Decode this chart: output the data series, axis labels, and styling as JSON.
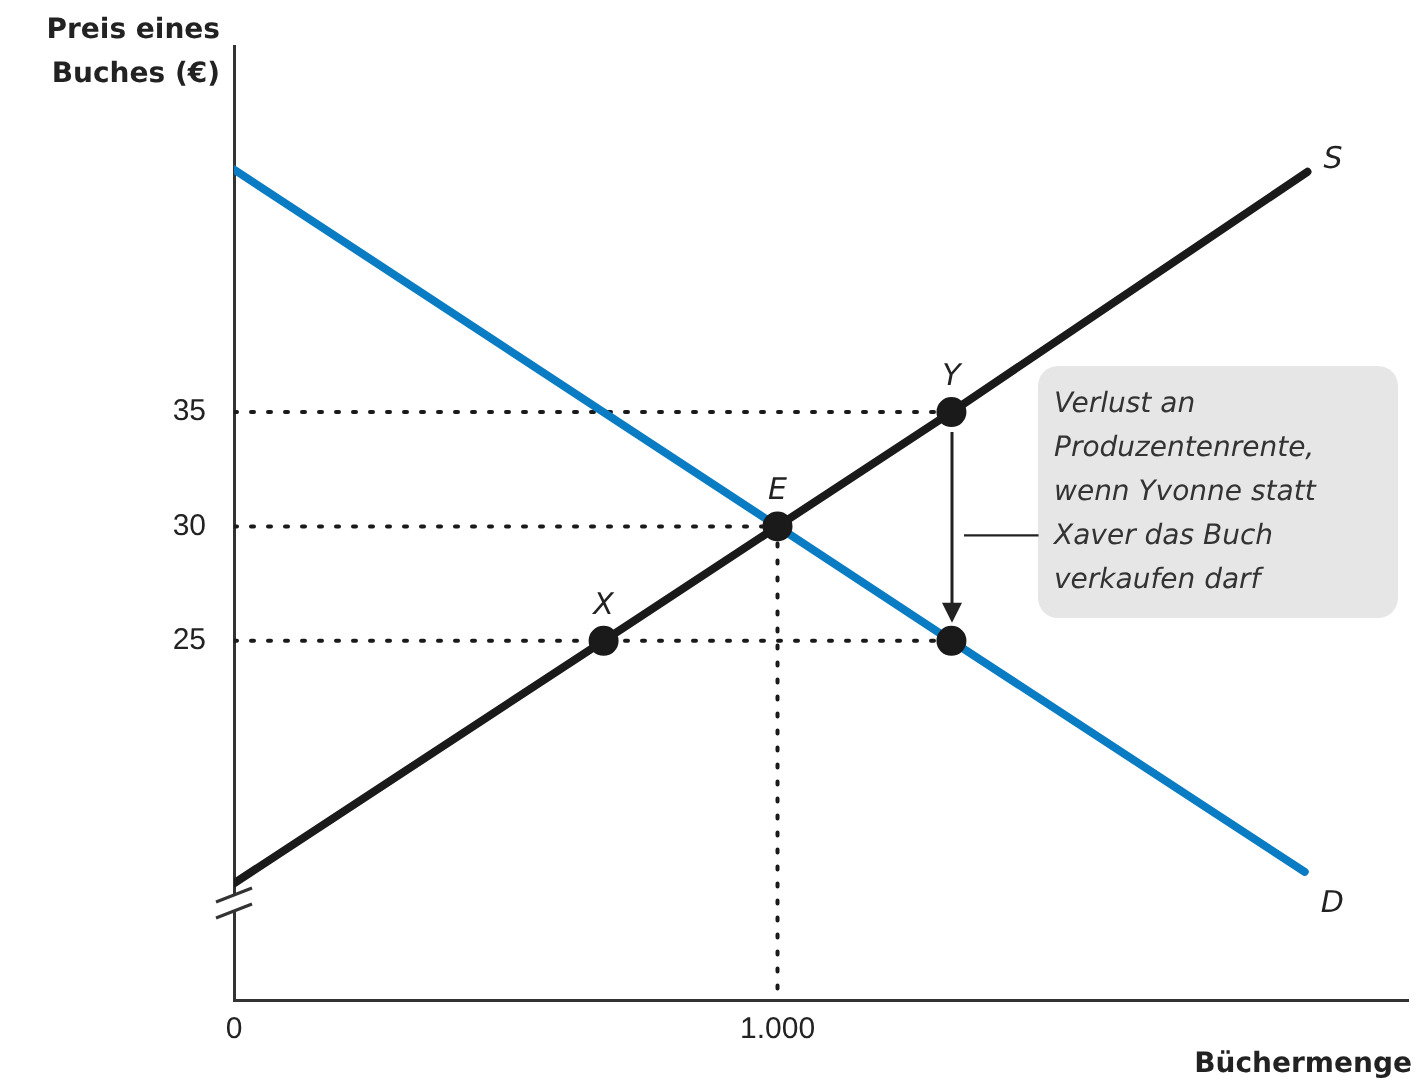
{
  "chart_data": {
    "type": "line",
    "xlabel": "Büchermenge",
    "ylabel": "Preis eines Buches (€)",
    "xlim": [
      0,
      2160
    ],
    "ylim": [
      9.3,
      51
    ],
    "xticks": [
      0,
      {
        "value": 1000,
        "label": "1.000"
      }
    ],
    "yticks": [
      25,
      30,
      35
    ],
    "grid": false,
    "legend": false,
    "series": [
      {
        "x": [
          0,
          1320
        ],
        "values": [
          35,
          35
        ],
        "color": "#1a1a1a",
        "line_style": "dotted",
        "marker": "none"
      },
      {
        "x": [
          0,
          1000
        ],
        "values": [
          30,
          30
        ],
        "color": "#1a1a1a",
        "line_style": "dotted",
        "marker": "none"
      },
      {
        "x": [
          0,
          1320
        ],
        "values": [
          25,
          25
        ],
        "color": "#1a1a1a",
        "line_style": "dotted",
        "marker": "none"
      },
      {
        "x": [
          1000,
          1000
        ],
        "values": [
          30,
          9.3
        ],
        "color": "#1a1a1a",
        "line_style": "dotted",
        "marker": "none"
      },
      {
        "name": "D",
        "x": [
          0,
          1000,
          1320,
          1970
        ],
        "values": [
          45.6,
          30,
          25,
          14.9
        ],
        "color": "#0a7cc4",
        "line_style": "solid",
        "marker": "none"
      },
      {
        "name": "S",
        "x": [
          0,
          680,
          1000,
          1320,
          1975
        ],
        "values": [
          14.4,
          25,
          30,
          35,
          45.5
        ],
        "color": "#1a1a1a",
        "line_style": "solid",
        "marker": "none"
      },
      {
        "type": "scatter",
        "x": [
          680,
          1000,
          1320,
          1320
        ],
        "values": [
          25,
          30,
          35,
          25
        ],
        "color": "#1a1a1a",
        "marker": "circle"
      }
    ],
    "annotations": [
      {
        "text": "X",
        "x": 680,
        "y": 25
      },
      {
        "text": "E",
        "x": 1000,
        "y": 30
      },
      {
        "text": "Y",
        "x": 1320,
        "y": 35
      },
      "Verlust an Produzentenrente, wenn Yvonne statt Xaver das Buch verkaufen darf"
    ]
  }
}
